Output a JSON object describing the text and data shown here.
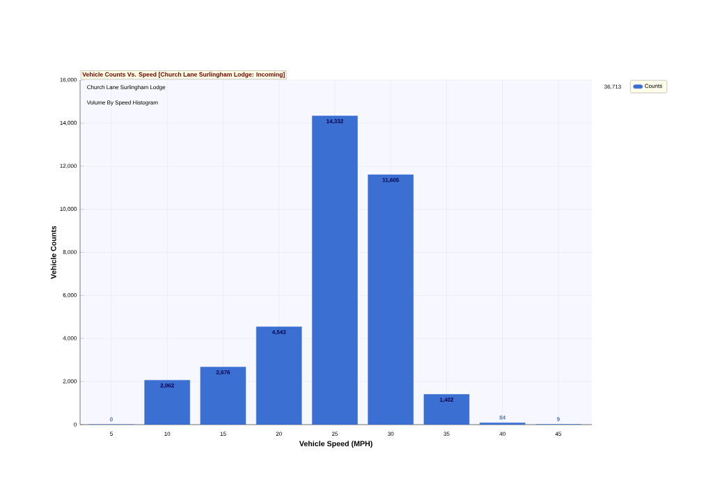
{
  "chart_data": {
    "type": "bar",
    "title": "Vehicle Counts Vs. Speed [Church Lane Surlingham Lodge: Incoming]",
    "subtitle": "Church Lane Surlingham Lodge",
    "annotations": [
      "Volume By Speed Histogram",
      "36,713"
    ],
    "xlabel": "Vehicle Speed (MPH)",
    "ylabel": "Vehicle Counts",
    "categories": [
      "5",
      "10",
      "15",
      "20",
      "25",
      "30",
      "35",
      "40",
      "45"
    ],
    "series": [
      {
        "name": "Counts",
        "color": "#3b6fd2",
        "values": [
          0,
          2062,
          2676,
          4543,
          14332,
          11605,
          1402,
          84,
          9
        ],
        "value_labels": [
          "0",
          "2,062",
          "2,676",
          "4,543",
          "14,332",
          "11,605",
          "1,402",
          "84",
          "9"
        ]
      }
    ],
    "ylim": [
      0,
      16000
    ],
    "yticks": [
      {
        "value": 0,
        "label": "0"
      },
      {
        "value": 2000,
        "label": "2,000"
      },
      {
        "value": 4000,
        "label": "4,000"
      },
      {
        "value": 6000,
        "label": "6,000"
      },
      {
        "value": 8000,
        "label": "8,000"
      },
      {
        "value": 10000,
        "label": "10,000"
      },
      {
        "value": 12000,
        "label": "12,000"
      },
      {
        "value": 14000,
        "label": "14,000"
      },
      {
        "value": 16000,
        "label": "16,000"
      }
    ],
    "grid": true,
    "legend": "top right"
  }
}
